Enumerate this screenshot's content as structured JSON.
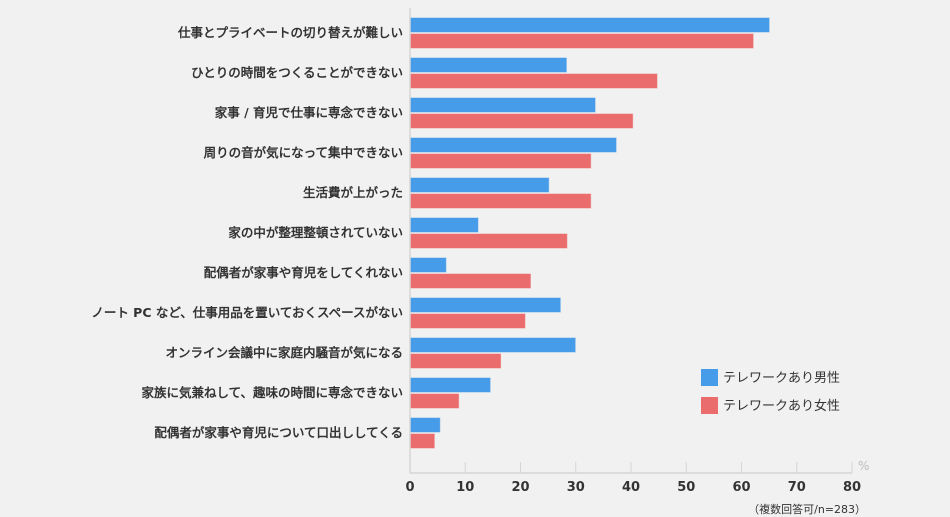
{
  "chart_data": {
    "type": "bar",
    "orientation": "horizontal",
    "categories": [
      "仕事とプライベートの切り替えが難しい",
      "ひとりの時間をつくることができない",
      "家事 / 育児で仕事に専念できない",
      "周りの音が気になって集中できない",
      "生活費が上がった",
      "家の中が整理整頓されていない",
      "配偶者が家事や育児をしてくれない",
      "ノート PC など、仕事用品を置いておくスペースがない",
      "オンライン会議中に家庭内騒音が気になる",
      "家族に気兼ねして、趣味の時間に専念できない",
      "配偶者が家事や育児について口出ししてくる"
    ],
    "series": [
      {
        "name": "テレワークあり男性",
        "color": "#479ce9",
        "values": [
          65.0,
          28.3,
          33.5,
          37.3,
          25.1,
          12.3,
          6.5,
          27.2,
          29.9,
          14.5,
          5.4
        ]
      },
      {
        "name": "テレワークあり女性",
        "color": "#eb6c6c",
        "values": [
          62.1,
          44.7,
          40.3,
          32.7,
          32.7,
          28.4,
          21.8,
          20.8,
          16.4,
          8.8,
          4.4
        ]
      }
    ],
    "xlim": [
      0,
      80
    ],
    "xticks": [
      "0",
      "10",
      "20",
      "30",
      "40",
      "50",
      "60",
      "70",
      "80"
    ],
    "xunit": "%",
    "legend": "bottom-right",
    "grid": false,
    "note": "（複数回答可/n=283）"
  }
}
